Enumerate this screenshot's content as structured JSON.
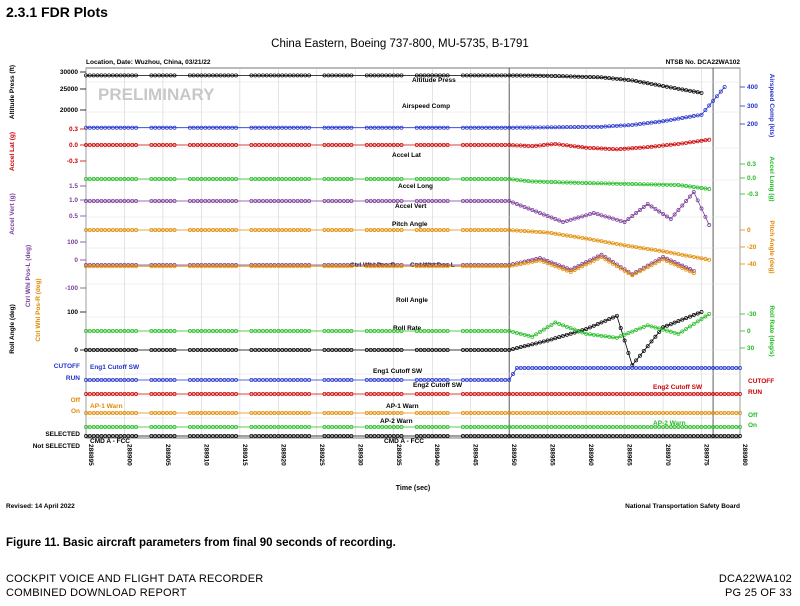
{
  "document": {
    "section_heading": "2.3.1  FDR Plots",
    "figure_caption": "Figure 11. Basic aircraft parameters from final 90 seconds of recording.",
    "footer_left": [
      "COCKPIT VOICE AND FLIGHT DATA RECORDER",
      "COMBINED DOWNLOAD REPORT"
    ],
    "footer_right": [
      "DCA22WA102",
      "PG 25 OF 33"
    ]
  },
  "chart_data": {
    "type": "line",
    "title": "China Eastern, Boeing 737-800, MU-5735, B-1791",
    "header_left": "Location, Date: Wuzhou, China, 03/21/22",
    "header_right": "NTSB No. DCA22WA102",
    "watermark": "PRELIMINARY",
    "xlabel": "Time (sec)",
    "revised": "Revised: 14 April 2022",
    "agency": "National Transportation Safety Board",
    "x_ticks": [
      "288895",
      "288900",
      "288905",
      "288910",
      "288915",
      "288920",
      "288925",
      "288930",
      "288935",
      "288940",
      "288945",
      "288950",
      "288955",
      "288960",
      "288965",
      "288970",
      "288975",
      "288980"
    ],
    "xlim": [
      288895,
      288980
    ],
    "left_axes": [
      {
        "label": "Altitude Press (ft)",
        "ticks": [
          "30000",
          "25000",
          "20000"
        ],
        "color": "#000000"
      },
      {
        "label": "Accel Lat (g)",
        "ticks": [
          "0.3",
          "0.0",
          "-0.3"
        ],
        "color": "#cc0000"
      },
      {
        "label": "Accel Vert (g)",
        "ticks": [
          "1.5",
          "1.0",
          "0.5"
        ],
        "color": "#7a3d9a"
      },
      {
        "label": "Ctrl Whl Pos-L (deg)",
        "ticks": [
          "100",
          "0",
          "-100"
        ],
        "color": "#7a3d9a"
      },
      {
        "label": "Ctrl Whl Pos-R (deg)",
        "ticks": [],
        "color": "#e08a00"
      },
      {
        "label": "Roll Angle (deg)",
        "ticks": [
          "100",
          "0"
        ],
        "color": "#000000"
      }
    ],
    "right_axes": [
      {
        "label": "Airspeed Comp (kts)",
        "ticks": [
          "400",
          "300",
          "200"
        ],
        "color": "#2233cc"
      },
      {
        "label": "Accel Long (g)",
        "ticks": [
          "0.3",
          "0.0",
          "-0.3"
        ],
        "color": "#22bb22"
      },
      {
        "label": "Pitch Angle (deg)",
        "ticks": [
          "0",
          "-20",
          "-40"
        ],
        "color": "#e08a00"
      },
      {
        "label": "Roll Rate (deg/s)",
        "ticks": [
          "-30",
          "0",
          "30"
        ],
        "color": "#22bb22"
      }
    ],
    "discrete_labels_left": [
      {
        "text": "CUTOFF",
        "color": "#2233cc"
      },
      {
        "text": "RUN",
        "color": "#2233cc"
      },
      {
        "text": "Off",
        "color": "#e08a00"
      },
      {
        "text": "On",
        "color": "#e08a00"
      },
      {
        "text": "SELECTED",
        "color": "#000000"
      },
      {
        "text": "Not SELECTED",
        "color": "#000000"
      }
    ],
    "discrete_labels_right": [
      {
        "text": "CUTOFF",
        "color": "#cc0000"
      },
      {
        "text": "RUN",
        "color": "#cc0000"
      },
      {
        "text": "Off",
        "color": "#22bb22"
      },
      {
        "text": "On",
        "color": "#22bb22"
      }
    ],
    "series_labels": [
      {
        "text": "Altitude Press"
      },
      {
        "text": "Airspeed Comp"
      },
      {
        "text": "Accel Lat"
      },
      {
        "text": "Accel Long"
      },
      {
        "text": "Accel Vert"
      },
      {
        "text": "Pitch Angle"
      },
      {
        "text": "Ctrl Whl Pos-R"
      },
      {
        "text": "Ctrl Whl Pos-L"
      },
      {
        "text": "Roll Angle"
      },
      {
        "text": "Roll Rate"
      },
      {
        "text": "Eng1 Cutoff SW"
      },
      {
        "text": "Eng1 Cutoff SW"
      },
      {
        "text": "Eng2 Cutoff SW"
      },
      {
        "text": "Eng2 Cutoff SW"
      },
      {
        "text": "AP-1 Warn"
      },
      {
        "text": "AP-1 Warn"
      },
      {
        "text": "AP-2 Warn"
      },
      {
        "text": "AP-2 Warn"
      },
      {
        "text": "CMD A - FCC"
      },
      {
        "text": "CMD A - FCC"
      }
    ],
    "series": [
      {
        "name": "Altitude Press",
        "color": "#000000",
        "x": [
          288895,
          288950,
          288955,
          288962,
          288966,
          288970,
          288975
        ],
        "y": [
          29100,
          29100,
          29000,
          28600,
          27800,
          26300,
          24500
        ]
      },
      {
        "name": "Airspeed Comp",
        "color": "#2233cc",
        "x": [
          288895,
          288950,
          288955,
          288962,
          288966,
          288970,
          288975,
          288978
        ],
        "y": [
          180,
          180,
          182,
          185,
          195,
          215,
          250,
          400
        ]
      },
      {
        "name": "Accel Lat",
        "color": "#cc0000",
        "x": [
          288895,
          288950,
          288953,
          288956,
          288960,
          288964,
          288968,
          288972,
          288976
        ],
        "y": [
          0.0,
          0.0,
          -0.02,
          0.02,
          -0.05,
          -0.08,
          -0.04,
          0.02,
          0.1
        ]
      },
      {
        "name": "Accel Long",
        "color": "#22bb22",
        "x": [
          288895,
          288950,
          288953,
          288960,
          288966,
          288972,
          288976
        ],
        "y": [
          0.0,
          0.0,
          -0.05,
          -0.08,
          -0.1,
          -0.12,
          -0.2
        ]
      },
      {
        "name": "Accel Vert",
        "color": "#7a3d9a",
        "x": [
          288895,
          288950,
          288953,
          288957,
          288961,
          288965,
          288968,
          288971,
          288974,
          288976
        ],
        "y": [
          1.0,
          1.0,
          0.7,
          0.3,
          0.6,
          0.3,
          0.9,
          0.4,
          1.3,
          0.2
        ]
      },
      {
        "name": "Pitch Angle",
        "color": "#e08a00",
        "x": [
          288895,
          288950,
          288955,
          288960,
          288965,
          288970,
          288976
        ],
        "y": [
          0,
          0,
          -3,
          -10,
          -18,
          -25,
          -35
        ]
      },
      {
        "name": "Ctrl Whl Pos-L",
        "color": "#7a3d9a",
        "x": [
          288895,
          288950,
          288954,
          288958,
          288962,
          288966,
          288970,
          288974
        ],
        "y": [
          0,
          0,
          30,
          -20,
          45,
          -40,
          35,
          -25
        ]
      },
      {
        "name": "Ctrl Whl Pos-R",
        "color": "#e08a00",
        "x": [
          288895,
          288950,
          288954,
          288958,
          288962,
          288966,
          288970,
          288974
        ],
        "y": [
          -5,
          -5,
          20,
          -30,
          35,
          -45,
          25,
          -35
        ]
      },
      {
        "name": "Roll Angle",
        "color": "#000000",
        "x": [
          288895,
          288950,
          288955,
          288960,
          288964,
          288966,
          288970,
          288975
        ],
        "y": [
          0,
          0,
          25,
          55,
          90,
          -40,
          60,
          100
        ]
      },
      {
        "name": "Roll Rate",
        "color": "#22bb22",
        "x": [
          288895,
          288950,
          288953,
          288956,
          288960,
          288964,
          288968,
          288972,
          288976
        ],
        "y": [
          0,
          0,
          10,
          -15,
          5,
          12,
          -10,
          5,
          -30
        ]
      },
      {
        "name": "Eng1 Cutoff SW",
        "color": "#2233cc",
        "x": [
          288895,
          288950,
          288951,
          288980
        ],
        "y": [
          1,
          1,
          0,
          0
        ],
        "levels": [
          "RUN",
          "CUTOFF"
        ]
      },
      {
        "name": "Eng2 Cutoff SW",
        "color": "#cc0000",
        "x": [
          288895,
          288980
        ],
        "y": [
          1,
          1
        ],
        "levels": [
          "RUN",
          "CUTOFF"
        ]
      },
      {
        "name": "AP-1 Warn",
        "color": "#e08a00",
        "x": [
          288895,
          288980
        ],
        "y": [
          0,
          0
        ],
        "levels": [
          "On",
          "Off"
        ]
      },
      {
        "name": "AP-2 Warn",
        "color": "#22bb22",
        "x": [
          288895,
          288980
        ],
        "y": [
          0,
          0
        ],
        "levels": [
          "On",
          "Off"
        ]
      },
      {
        "name": "CMD A - FCC",
        "color": "#000000",
        "x": [
          288895,
          288980
        ],
        "y": [
          1,
          1
        ],
        "levels": [
          "Not SELECTED",
          "SELECTED"
        ]
      }
    ]
  }
}
